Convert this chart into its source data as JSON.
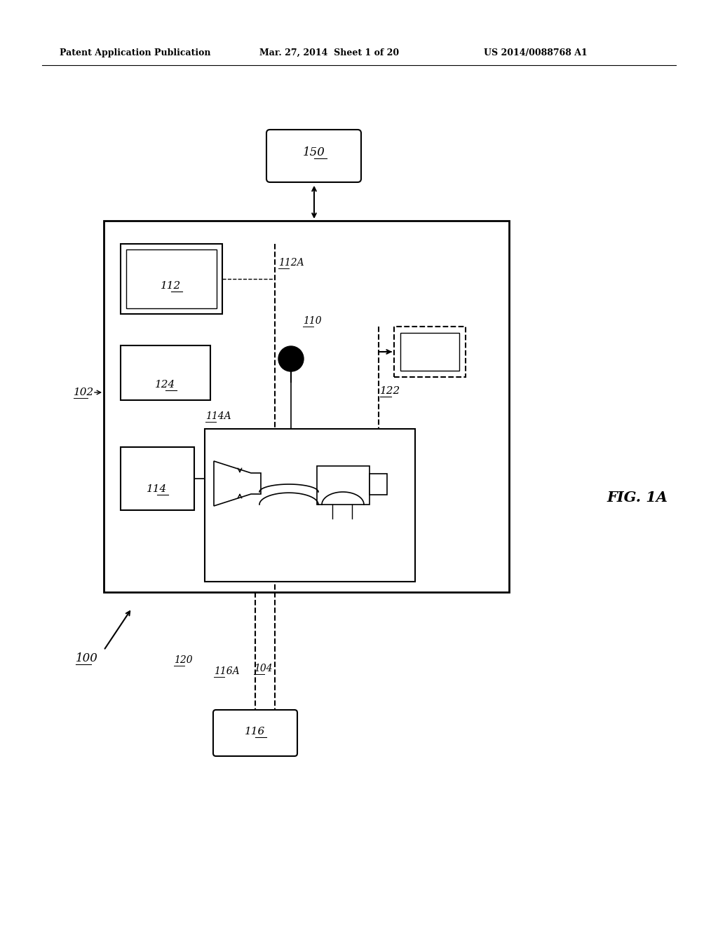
{
  "bg_color": "#ffffff",
  "header_left": "Patent Application Publication",
  "header_mid": "Mar. 27, 2014  Sheet 1 of 20",
  "header_right": "US 2014/0088768 A1",
  "fig_label": "FIG. 1A",
  "label_100": "100",
  "label_102": "102",
  "label_104": "104",
  "label_110": "110",
  "label_112": "112",
  "label_112A": "112A",
  "label_114": "114",
  "label_114A": "114A",
  "label_116": "116",
  "label_116A": "116A",
  "label_120": "120",
  "label_122": "122",
  "label_124": "124",
  "label_150": "150"
}
